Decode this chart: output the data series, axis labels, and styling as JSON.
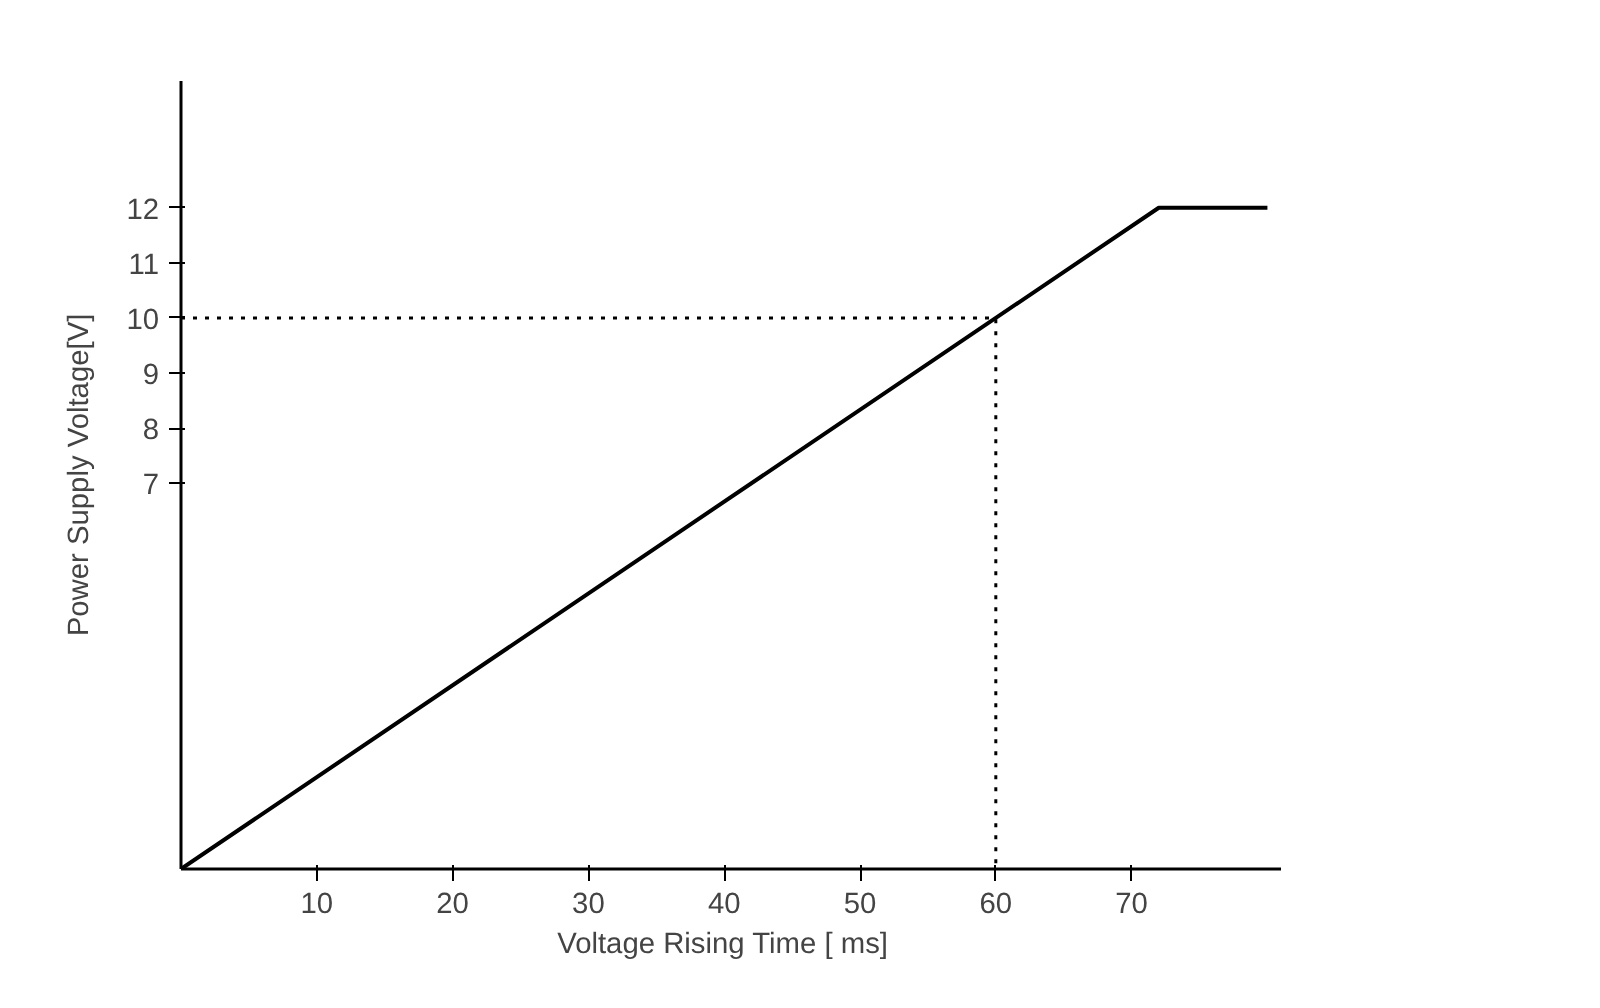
{
  "chart_data": {
    "type": "line",
    "xlabel": "Voltage Rising Time   [ ms]",
    "ylabel": "Power Supply Voltage[V]",
    "xlim": [
      0,
      81
    ],
    "ylim": [
      0,
      14.3
    ],
    "xticks": [
      10,
      20,
      30,
      40,
      50,
      60,
      70
    ],
    "yticks": [
      7,
      8,
      9,
      10,
      11,
      12
    ],
    "grid": false,
    "marker": "none",
    "series": [
      {
        "color": "#000000",
        "x": [
          0,
          72,
          80
        ],
        "values": [
          0,
          12,
          12
        ],
        "line_style": "solid"
      },
      {
        "color": "#000000",
        "x": [
          0,
          60,
          60
        ],
        "values": [
          10,
          10,
          0
        ],
        "line_style": "dotted"
      }
    ]
  }
}
